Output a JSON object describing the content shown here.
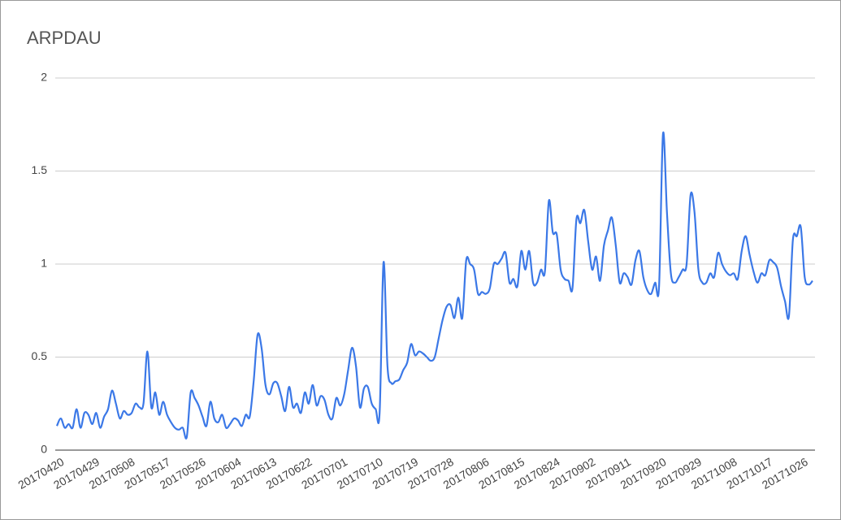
{
  "chart_data": {
    "type": "line",
    "title": "ARPDAU",
    "categories": [
      "20170420",
      null,
      null,
      null,
      null,
      null,
      null,
      null,
      null,
      "20170429",
      null,
      null,
      null,
      null,
      null,
      null,
      null,
      null,
      "20170508",
      null,
      null,
      null,
      null,
      null,
      null,
      null,
      null,
      "20170517",
      null,
      null,
      null,
      null,
      null,
      null,
      null,
      null,
      "20170526",
      null,
      null,
      null,
      null,
      null,
      null,
      null,
      null,
      "20170604",
      null,
      null,
      null,
      null,
      null,
      null,
      null,
      null,
      "20170613",
      null,
      null,
      null,
      null,
      null,
      null,
      null,
      null,
      "20170622",
      null,
      null,
      null,
      null,
      null,
      null,
      null,
      null,
      "20170701",
      null,
      null,
      null,
      null,
      null,
      null,
      null,
      null,
      "20170710",
      null,
      null,
      null,
      null,
      null,
      null,
      null,
      null,
      "20170719",
      null,
      null,
      null,
      null,
      null,
      null,
      null,
      null,
      "20170728",
      null,
      null,
      null,
      null,
      null,
      null,
      null,
      null,
      "20170806",
      null,
      null,
      null,
      null,
      null,
      null,
      null,
      null,
      "20170815",
      null,
      null,
      null,
      null,
      null,
      null,
      null,
      null,
      "20170824",
      null,
      null,
      null,
      null,
      null,
      null,
      null,
      null,
      "20170902",
      null,
      null,
      null,
      null,
      null,
      null,
      null,
      null,
      "20170911",
      null,
      null,
      null,
      null,
      null,
      null,
      null,
      null,
      "20170920",
      null,
      null,
      null,
      null,
      null,
      null,
      null,
      null,
      "20170929",
      null,
      null,
      null,
      null,
      null,
      null,
      null,
      null,
      "20171008",
      null,
      null,
      null,
      null,
      null,
      null,
      null,
      null,
      "20171017",
      null,
      null,
      null,
      null,
      null,
      null,
      null,
      null,
      "20171026",
      null,
      null,
      null
    ],
    "values": [
      0.13,
      0.17,
      0.12,
      0.14,
      0.12,
      0.22,
      0.12,
      0.2,
      0.19,
      0.14,
      0.2,
      0.12,
      0.18,
      0.22,
      0.32,
      0.25,
      0.17,
      0.21,
      0.19,
      0.2,
      0.25,
      0.23,
      0.25,
      0.53,
      0.23,
      0.31,
      0.19,
      0.26,
      0.19,
      0.15,
      0.12,
      0.11,
      0.12,
      0.07,
      0.31,
      0.28,
      0.24,
      0.18,
      0.13,
      0.26,
      0.17,
      0.15,
      0.19,
      0.12,
      0.14,
      0.17,
      0.16,
      0.13,
      0.19,
      0.18,
      0.37,
      0.62,
      0.55,
      0.35,
      0.3,
      0.36,
      0.36,
      0.29,
      0.21,
      0.34,
      0.23,
      0.25,
      0.2,
      0.31,
      0.25,
      0.35,
      0.24,
      0.29,
      0.27,
      0.19,
      0.17,
      0.28,
      0.24,
      0.3,
      0.43,
      0.55,
      0.45,
      0.23,
      0.33,
      0.34,
      0.25,
      0.22,
      0.2,
      1.01,
      0.45,
      0.36,
      0.37,
      0.38,
      0.43,
      0.47,
      0.57,
      0.51,
      0.53,
      0.52,
      0.5,
      0.48,
      0.5,
      0.6,
      0.7,
      0.77,
      0.78,
      0.71,
      0.82,
      0.71,
      1.02,
      1.0,
      0.97,
      0.84,
      0.85,
      0.84,
      0.87,
      1.0,
      1.0,
      1.03,
      1.06,
      0.9,
      0.92,
      0.88,
      1.07,
      0.97,
      1.07,
      0.9,
      0.9,
      0.97,
      0.96,
      1.34,
      1.17,
      1.16,
      0.97,
      0.92,
      0.91,
      0.87,
      1.24,
      1.22,
      1.29,
      1.12,
      0.97,
      1.04,
      0.91,
      1.1,
      1.18,
      1.25,
      1.1,
      0.9,
      0.95,
      0.93,
      0.89,
      1.02,
      1.07,
      0.93,
      0.86,
      0.84,
      0.9,
      0.88,
      1.7,
      1.28,
      0.95,
      0.9,
      0.93,
      0.97,
      1.0,
      1.37,
      1.28,
      0.97,
      0.9,
      0.9,
      0.95,
      0.93,
      1.06,
      1.0,
      0.96,
      0.94,
      0.95,
      0.92,
      1.07,
      1.15,
      1.05,
      0.96,
      0.9,
      0.95,
      0.94,
      1.02,
      1.01,
      0.98,
      0.88,
      0.8,
      0.72,
      1.13,
      1.15,
      1.2,
      0.93,
      0.89,
      0.91
    ],
    "color": "#3b78e7",
    "ylim": [
      0,
      2
    ],
    "yticks": [
      0,
      0.5,
      1,
      1.5,
      2
    ],
    "grid": true
  }
}
